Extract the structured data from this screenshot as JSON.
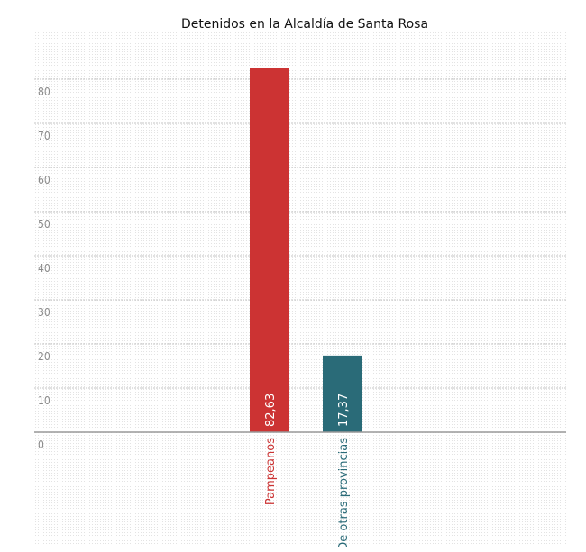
{
  "chart_data": {
    "type": "bar",
    "title": "Detenidos en la Alcaldía de Santa Rosa",
    "xlabel": "",
    "ylabel": "",
    "categories": [
      "Pampeanos",
      "De otras provincias"
    ],
    "values": [
      82.63,
      17.37
    ],
    "value_labels": [
      "82,63",
      "17,37"
    ],
    "colors": [
      "#cc3333",
      "#2a6b78"
    ],
    "yticks": [
      0,
      10,
      20,
      30,
      40,
      50,
      60,
      70,
      80
    ],
    "ylim": [
      0,
      90
    ],
    "grid": true,
    "legend": "none"
  }
}
